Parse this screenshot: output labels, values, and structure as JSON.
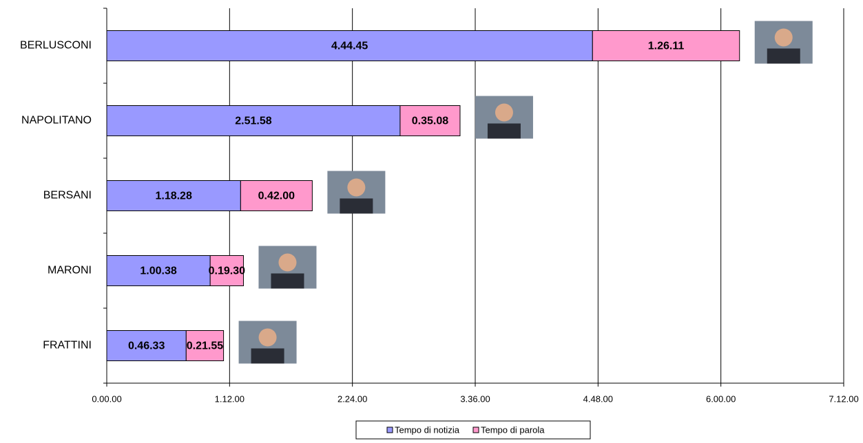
{
  "chart_data": {
    "type": "bar",
    "orientation": "horizontal",
    "stacked": true,
    "categories": [
      "BERLUSCONI",
      "NAPOLITANO",
      "BERSANI",
      "MARONI",
      "FRATTINI"
    ],
    "series": [
      {
        "name": "Tempo di notizia",
        "color": "#9999ff",
        "values": [
          284.75,
          171.9667,
          78.4667,
          60.6333,
          46.55
        ],
        "value_labels": [
          "4.44.45",
          "2.51.58",
          "1.18.28",
          "1.00.38",
          "0.46.33"
        ]
      },
      {
        "name": "Tempo di parola",
        "color": "#ff99cc",
        "values": [
          86.1833,
          35.1333,
          42,
          19.5,
          21.9167
        ],
        "value_labels": [
          "1.26.11",
          "0.35.08",
          "0.42.00",
          "0.19.30",
          "0.21.55"
        ]
      }
    ],
    "xlim": [
      0,
      432
    ],
    "xticks": [
      {
        "value": 0,
        "label": "0.00.00"
      },
      {
        "value": 72,
        "label": "1.12.00"
      },
      {
        "value": 144,
        "label": "2.24.00"
      },
      {
        "value": 216,
        "label": "3.36.00"
      },
      {
        "value": 288,
        "label": "4.48.00"
      },
      {
        "value": 360,
        "label": "6.00.00"
      },
      {
        "value": 432,
        "label": "7.12.00"
      }
    ],
    "grid": true,
    "legend": "bottom"
  }
}
